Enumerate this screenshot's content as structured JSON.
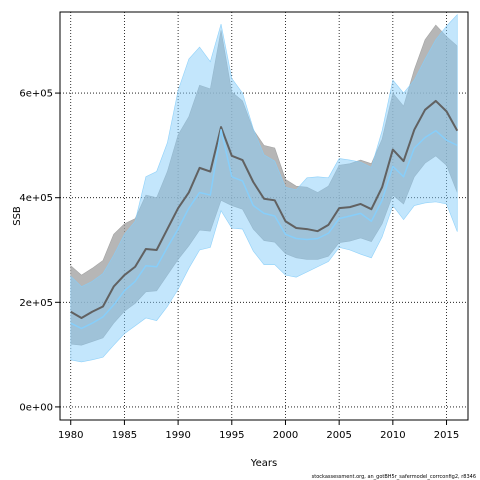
{
  "chart_data": {
    "type": "line",
    "xlabel": "Years",
    "ylabel": "SSB",
    "footnote": "stockassessment.org, an_gotBH5r_safermodel_corrconfig2, r8346",
    "xlim": [
      1979,
      2017
    ],
    "ylim": [
      -25000,
      755000
    ],
    "xticks": [
      1980,
      1985,
      1990,
      1995,
      2000,
      2005,
      2010,
      2015
    ],
    "yticks": [
      0,
      200000,
      400000,
      600000
    ],
    "ytick_labels": [
      "0e+00",
      "2e+05",
      "4e+05",
      "6e+05"
    ],
    "grid": true,
    "x": [
      1980,
      1981,
      1982,
      1983,
      1984,
      1985,
      1986,
      1987,
      1988,
      1989,
      1990,
      1991,
      1992,
      1993,
      1994,
      1995,
      1996,
      1997,
      1998,
      1999,
      2000,
      2001,
      2002,
      2003,
      2004,
      2005,
      2006,
      2007,
      2008,
      2009,
      2010,
      2011,
      2012,
      2013,
      2014,
      2015,
      2016
    ],
    "series": [
      {
        "values": [
          182000,
          170000,
          182000,
          192000,
          230000,
          252000,
          268000,
          302000,
          300000,
          340000,
          380000,
          410000,
          457000,
          450000,
          535000,
          480000,
          472000,
          430000,
          398000,
          395000,
          355000,
          342000,
          340000,
          336000,
          348000,
          380000,
          382000,
          388000,
          378000,
          420000,
          492000,
          470000,
          530000,
          568000,
          585000,
          565000,
          528000
        ],
        "lower": [
          120000,
          118000,
          125000,
          132000,
          160000,
          183000,
          198000,
          220000,
          222000,
          252000,
          282000,
          308000,
          338000,
          336000,
          395000,
          385000,
          378000,
          340000,
          318000,
          315000,
          293000,
          285000,
          282000,
          282000,
          288000,
          314000,
          317000,
          323000,
          316000,
          350000,
          405000,
          388000,
          440000,
          466000,
          480000,
          462000,
          410000
        ],
        "upper": [
          270000,
          252000,
          265000,
          280000,
          330000,
          350000,
          360000,
          405000,
          400000,
          450000,
          520000,
          555000,
          615000,
          608000,
          720000,
          602000,
          585000,
          530000,
          500000,
          495000,
          435000,
          422000,
          420000,
          410000,
          422000,
          462000,
          465000,
          472000,
          465000,
          512000,
          600000,
          575000,
          645000,
          702000,
          730000,
          708000,
          690000
        ]
      },
      {
        "values": [
          160000,
          150000,
          160000,
          172000,
          195000,
          222000,
          240000,
          270000,
          268000,
          305000,
          340000,
          380000,
          410000,
          405000,
          530000,
          440000,
          432000,
          385000,
          370000,
          365000,
          330000,
          322000,
          320000,
          322000,
          332000,
          360000,
          365000,
          370000,
          355000,
          395000,
          460000,
          440000,
          495000,
          515000,
          528000,
          510000,
          500000
        ],
        "lower": [
          90000,
          86000,
          90000,
          95000,
          118000,
          140000,
          155000,
          170000,
          165000,
          192000,
          225000,
          265000,
          300000,
          305000,
          375000,
          342000,
          340000,
          298000,
          272000,
          272000,
          252000,
          248000,
          258000,
          268000,
          278000,
          305000,
          300000,
          292000,
          285000,
          325000,
          385000,
          358000,
          385000,
          390000,
          392000,
          388000,
          335000
        ],
        "upper": [
          250000,
          230000,
          240000,
          255000,
          290000,
          330000,
          355000,
          440000,
          450000,
          505000,
          605000,
          665000,
          688000,
          660000,
          732000,
          628000,
          600000,
          532000,
          482000,
          470000,
          420000,
          415000,
          438000,
          440000,
          438000,
          475000,
          472000,
          468000,
          458000,
          528000,
          625000,
          600000,
          625000,
          665000,
          702000,
          728000,
          750000
        ]
      }
    ],
    "colors": {
      "series1_line": "#616161",
      "series1_band": "#9e9e9e",
      "series2_line": "#87cefa",
      "series2_band": "#87cefa"
    }
  }
}
